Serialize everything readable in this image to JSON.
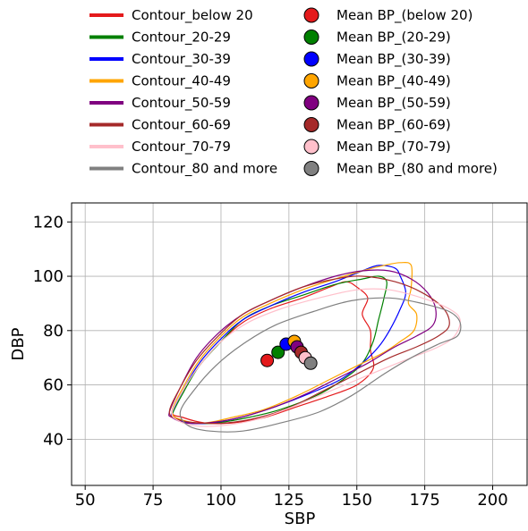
{
  "chart_data": {
    "type": "line",
    "title": "",
    "xlabel": "SBP",
    "ylabel": "DBP",
    "xlim": [
      45,
      213
    ],
    "ylim": [
      23,
      127
    ],
    "xticks": [
      50,
      75,
      100,
      125,
      150,
      175,
      200
    ],
    "yticks": [
      40,
      60,
      80,
      100,
      120
    ],
    "grid": true,
    "legend_placement": "above plot",
    "series": [
      {
        "name": "Contour_below 20",
        "color": "#e41a1c",
        "points": [
          [
            82,
            50
          ],
          [
            86,
            58
          ],
          [
            92,
            67
          ],
          [
            100,
            76
          ],
          [
            108,
            83
          ],
          [
            118,
            88
          ],
          [
            130,
            92
          ],
          [
            140,
            96
          ],
          [
            146,
            98
          ],
          [
            150,
            96
          ],
          [
            154,
            92
          ],
          [
            152,
            86
          ],
          [
            155,
            80
          ],
          [
            155,
            73
          ],
          [
            156,
            66
          ],
          [
            150,
            60
          ],
          [
            140,
            56
          ],
          [
            128,
            52
          ],
          [
            116,
            48
          ],
          [
            104,
            46
          ],
          [
            94,
            46
          ],
          [
            86,
            48
          ],
          [
            82,
            50
          ]
        ]
      },
      {
        "name": "Contour_20-29",
        "color": "#008000",
        "points": [
          [
            82,
            49
          ],
          [
            86,
            57
          ],
          [
            92,
            67
          ],
          [
            100,
            76
          ],
          [
            108,
            84
          ],
          [
            118,
            89
          ],
          [
            130,
            93
          ],
          [
            142,
            97
          ],
          [
            152,
            99
          ],
          [
            158,
            100
          ],
          [
            161,
            98
          ],
          [
            160,
            92
          ],
          [
            158,
            84
          ],
          [
            156,
            76
          ],
          [
            152,
            68
          ],
          [
            145,
            62
          ],
          [
            135,
            56
          ],
          [
            122,
            51
          ],
          [
            110,
            48
          ],
          [
            98,
            46
          ],
          [
            88,
            46
          ],
          [
            83,
            48
          ],
          [
            82,
            49
          ]
        ]
      },
      {
        "name": "Contour_30-39",
        "color": "#0000ff",
        "points": [
          [
            82,
            50
          ],
          [
            86,
            58
          ],
          [
            92,
            68
          ],
          [
            100,
            77
          ],
          [
            108,
            84
          ],
          [
            118,
            89
          ],
          [
            130,
            94
          ],
          [
            142,
            98
          ],
          [
            152,
            102
          ],
          [
            158,
            104
          ],
          [
            164,
            103
          ],
          [
            166,
            100
          ],
          [
            168,
            94
          ],
          [
            166,
            88
          ],
          [
            162,
            80
          ],
          [
            158,
            74
          ],
          [
            152,
            68
          ],
          [
            144,
            62
          ],
          [
            133,
            57
          ],
          [
            120,
            52
          ],
          [
            107,
            48
          ],
          [
            96,
            46
          ],
          [
            88,
            46
          ],
          [
            83,
            48
          ],
          [
            82,
            50
          ]
        ]
      },
      {
        "name": "Contour_40-49",
        "color": "#ffa500",
        "points": [
          [
            82,
            50
          ],
          [
            86,
            59
          ],
          [
            92,
            69
          ],
          [
            100,
            78
          ],
          [
            108,
            85
          ],
          [
            118,
            90
          ],
          [
            130,
            95
          ],
          [
            142,
            99
          ],
          [
            152,
            102
          ],
          [
            160,
            104
          ],
          [
            166,
            105
          ],
          [
            170,
            104
          ],
          [
            170,
            96
          ],
          [
            169,
            90
          ],
          [
            172,
            86
          ],
          [
            171,
            80
          ],
          [
            166,
            76
          ],
          [
            160,
            72
          ],
          [
            150,
            67
          ],
          [
            140,
            62
          ],
          [
            128,
            56
          ],
          [
            116,
            51
          ],
          [
            104,
            48
          ],
          [
            94,
            46
          ],
          [
            86,
            47
          ],
          [
            82,
            50
          ]
        ]
      },
      {
        "name": "Contour_50-59",
        "color": "#800080",
        "points": [
          [
            81,
            50
          ],
          [
            85,
            59
          ],
          [
            91,
            70
          ],
          [
            99,
            79
          ],
          [
            108,
            86
          ],
          [
            118,
            91
          ],
          [
            130,
            96
          ],
          [
            142,
            100
          ],
          [
            152,
            102
          ],
          [
            162,
            102
          ],
          [
            170,
            99
          ],
          [
            176,
            94
          ],
          [
            179,
            88
          ],
          [
            178,
            82
          ],
          [
            172,
            78
          ],
          [
            164,
            74
          ],
          [
            154,
            68
          ],
          [
            144,
            63
          ],
          [
            132,
            57
          ],
          [
            120,
            52
          ],
          [
            107,
            48
          ],
          [
            95,
            46
          ],
          [
            87,
            46
          ],
          [
            82,
            48
          ],
          [
            81,
            50
          ]
        ]
      },
      {
        "name": "Contour_60-69",
        "color": "#a52a2a",
        "points": [
          [
            81,
            50
          ],
          [
            85,
            59
          ],
          [
            91,
            69
          ],
          [
            99,
            78
          ],
          [
            108,
            86
          ],
          [
            118,
            91
          ],
          [
            130,
            96
          ],
          [
            142,
            99
          ],
          [
            152,
            100
          ],
          [
            164,
            98
          ],
          [
            174,
            94
          ],
          [
            182,
            88
          ],
          [
            184,
            82
          ],
          [
            180,
            78
          ],
          [
            172,
            74
          ],
          [
            162,
            70
          ],
          [
            150,
            64
          ],
          [
            138,
            58
          ],
          [
            126,
            52
          ],
          [
            114,
            48
          ],
          [
            102,
            46
          ],
          [
            92,
            46
          ],
          [
            85,
            47
          ],
          [
            81,
            50
          ]
        ]
      },
      {
        "name": "Contour_70-79",
        "color": "#ffc0cb",
        "points": [
          [
            82,
            50
          ],
          [
            86,
            58
          ],
          [
            92,
            67
          ],
          [
            100,
            76
          ],
          [
            110,
            83
          ],
          [
            122,
            88
          ],
          [
            136,
            92
          ],
          [
            150,
            95
          ],
          [
            162,
            95
          ],
          [
            174,
            92
          ],
          [
            184,
            88
          ],
          [
            188,
            84
          ],
          [
            186,
            78
          ],
          [
            180,
            74
          ],
          [
            170,
            70
          ],
          [
            160,
            66
          ],
          [
            148,
            61
          ],
          [
            136,
            56
          ],
          [
            124,
            51
          ],
          [
            112,
            47
          ],
          [
            100,
            45
          ],
          [
            90,
            45
          ],
          [
            84,
            47
          ],
          [
            82,
            50
          ]
        ]
      },
      {
        "name": "Contour_80 and more",
        "color": "#808080",
        "points": [
          [
            85,
            50
          ],
          [
            90,
            58
          ],
          [
            98,
            67
          ],
          [
            108,
            75
          ],
          [
            120,
            82
          ],
          [
            134,
            87
          ],
          [
            148,
            91
          ],
          [
            162,
            92
          ],
          [
            174,
            90
          ],
          [
            184,
            87
          ],
          [
            188,
            83
          ],
          [
            187,
            78
          ],
          [
            180,
            75
          ],
          [
            170,
            70
          ],
          [
            160,
            64
          ],
          [
            148,
            56
          ],
          [
            136,
            50
          ],
          [
            122,
            46
          ],
          [
            108,
            43
          ],
          [
            96,
            43
          ],
          [
            88,
            45
          ],
          [
            85,
            50
          ]
        ]
      }
    ],
    "means": [
      {
        "name": "Mean BP_(below 20)",
        "color": "#e41a1c",
        "x": 117,
        "y": 69
      },
      {
        "name": "Mean BP_(20-29)",
        "color": "#008000",
        "x": 121,
        "y": 72
      },
      {
        "name": "Mean BP_(30-39)",
        "color": "#0000ff",
        "x": 124,
        "y": 75
      },
      {
        "name": "Mean BP_(40-49)",
        "color": "#ffa500",
        "x": 127,
        "y": 76
      },
      {
        "name": "Mean BP_(50-59)",
        "color": "#800080",
        "x": 128,
        "y": 74
      },
      {
        "name": "Mean BP_(60-69)",
        "color": "#a52a2a",
        "x": 129.5,
        "y": 72
      },
      {
        "name": "Mean BP_(70-79)",
        "color": "#ffc0cb",
        "x": 131,
        "y": 70
      },
      {
        "name": "Mean BP_(80 and more)",
        "color": "#808080",
        "x": 133,
        "y": 68
      }
    ]
  }
}
